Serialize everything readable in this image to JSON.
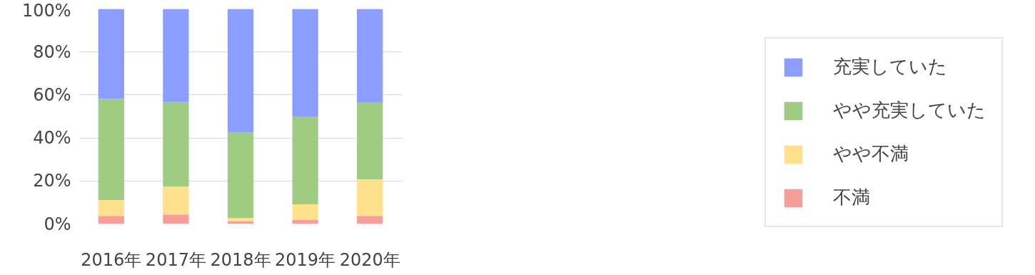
{
  "chart_data": {
    "type": "bar",
    "stacked": true,
    "categories": [
      "2016年",
      "2017年",
      "2018年",
      "2019年",
      "2020年"
    ],
    "series": [
      {
        "name": "不満",
        "color": "#f59e9b",
        "values": [
          3.7,
          4.4,
          1.3,
          2,
          3.7
        ]
      },
      {
        "name": "やや不満",
        "color": "#ffe08c",
        "values": [
          7.4,
          13,
          1.4,
          7.1,
          17.1
        ]
      },
      {
        "name": "やや充実していた",
        "color": "#9fcb83",
        "values": [
          47,
          39.3,
          39.9,
          40.9,
          35.6
        ]
      },
      {
        "name": "充実していた",
        "color": "#8b9dff",
        "values": [
          41.9,
          43.3,
          57.4,
          50,
          43.6
        ]
      }
    ],
    "ylim": [
      0,
      100
    ],
    "yticks": [
      {
        "value": 0,
        "label": "0%"
      },
      {
        "value": 20,
        "label": "20%"
      },
      {
        "value": 40,
        "label": "40%"
      },
      {
        "value": 60,
        "label": "60%"
      },
      {
        "value": 80,
        "label": "80%"
      },
      {
        "value": 100,
        "label": "100%"
      }
    ],
    "grid": "y",
    "legend": "right"
  }
}
